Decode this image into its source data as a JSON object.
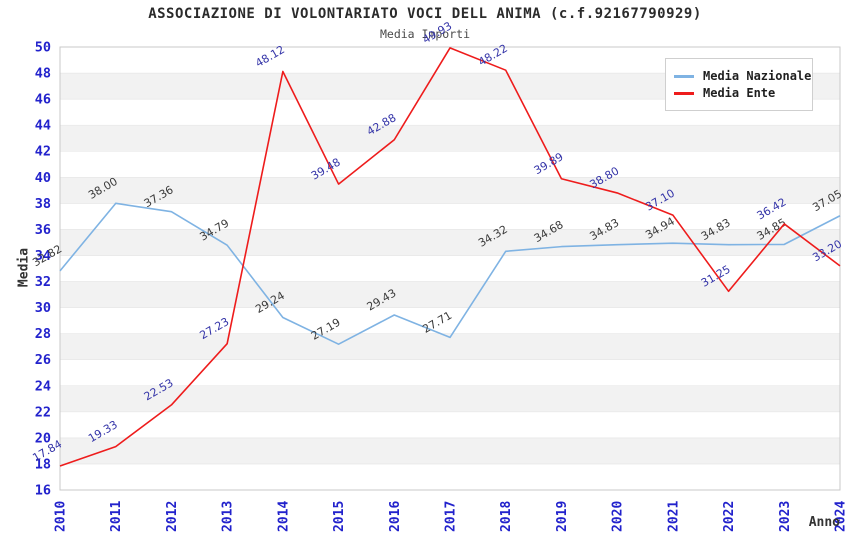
{
  "chart_data": {
    "type": "line",
    "title": "ASSOCIAZIONE DI VOLONTARIATO VOCI DELL ANIMA (c.f.92167790929)",
    "subtitle": "Media Importi",
    "xlabel": "Anno",
    "ylabel": "Media",
    "categories": [
      "2010",
      "2011",
      "2012",
      "2013",
      "2014",
      "2015",
      "2016",
      "2017",
      "2018",
      "2019",
      "2020",
      "2021",
      "2022",
      "2023",
      "2024"
    ],
    "series": [
      {
        "name": "Media Nazionale",
        "color": "#7fb3e3",
        "label_color": "#3a3a3a",
        "values": [
          32.82,
          38.0,
          37.36,
          34.79,
          29.24,
          27.19,
          29.43,
          27.71,
          34.32,
          34.68,
          34.83,
          34.94,
          34.83,
          34.85,
          37.05
        ]
      },
      {
        "name": "Media Ente",
        "color": "#ee1c1c",
        "label_color": "#3434a8",
        "values": [
          17.84,
          19.33,
          22.53,
          27.23,
          48.12,
          39.48,
          42.88,
          49.93,
          48.22,
          39.89,
          38.8,
          37.1,
          31.25,
          36.42,
          33.2
        ]
      }
    ],
    "ylim": [
      16,
      50
    ],
    "ytick_step": 2,
    "grid": "alternating horizontal bands",
    "legend_position": "top-right",
    "colors": {
      "band_gray": "#f2f2f2",
      "band_white": "#ffffff",
      "plot_border": "#c9c9c9",
      "tick_label_blue": "#2222cc",
      "axis_label_dark": "#333333"
    },
    "label_decimals": 2
  }
}
